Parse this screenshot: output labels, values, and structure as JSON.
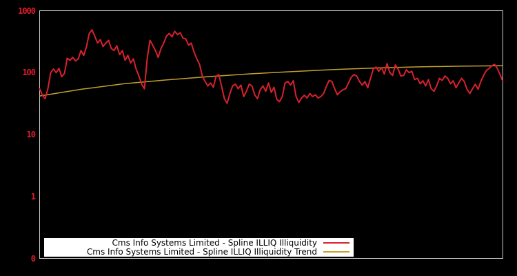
{
  "colors": {
    "background": "#000000",
    "plot_border": "#cccccc",
    "axis_label": "#e01b28",
    "series_red": "#da212e",
    "series_gold": "#c4a02f",
    "legend_bg": "#ffffff",
    "legend_text": "#000000"
  },
  "chart_data": {
    "type": "line",
    "title": "",
    "xlabel": "",
    "ylabel": "",
    "grid": false,
    "legend_position": "bottom-center",
    "y_scale": "log",
    "y_range": [
      0.1,
      1000
    ],
    "y_ticks": [
      {
        "label": "1000",
        "value": 1000
      },
      {
        "label": "100",
        "value": 100
      },
      {
        "label": "10",
        "value": 10
      },
      {
        "label": "1",
        "value": 1
      },
      {
        "label": "0",
        "value": 0.1
      }
    ],
    "x_tick_labels_visible": false,
    "series": [
      {
        "name": "Cms Info Systems Limited - Spline ILLIQ Illiquidity",
        "color": "#da212e",
        "values": [
          55,
          43,
          38,
          55,
          100,
          114,
          100,
          117,
          86,
          97,
          171,
          158,
          176,
          155,
          167,
          227,
          190,
          264,
          430,
          490,
          388,
          300,
          341,
          264,
          300,
          333,
          245,
          227,
          271,
          195,
          227,
          158,
          190,
          143,
          167,
          114,
          88,
          65,
          55,
          167,
          333,
          278,
          227,
          176,
          245,
          300,
          388,
          430,
          378,
          464,
          409,
          441,
          360,
          350,
          278,
          300,
          215,
          167,
          136,
          88,
          72,
          61,
          68,
          58,
          88,
          93,
          60,
          38,
          32,
          46,
          61,
          65,
          55,
          63,
          41,
          50,
          65,
          61,
          44,
          38,
          53,
          61,
          50,
          68,
          48,
          58,
          37,
          34,
          41,
          68,
          72,
          63,
          74,
          41,
          33,
          39,
          43,
          39,
          46,
          41,
          44,
          39,
          41,
          46,
          60,
          75,
          72,
          55,
          44,
          49,
          53,
          55,
          68,
          84,
          93,
          88,
          72,
          63,
          72,
          57,
          81,
          114,
          123,
          105,
          120,
          95,
          140,
          100,
          90,
          133,
          114,
          88,
          90,
          111,
          100,
          105,
          77,
          81,
          66,
          74,
          61,
          77,
          55,
          50,
          61,
          81,
          75,
          88,
          81,
          66,
          74,
          57,
          68,
          81,
          72,
          54,
          46,
          55,
          65,
          54,
          72,
          90,
          108,
          117,
          129,
          136,
          117,
          93,
          72
        ]
      },
      {
        "name": "Cms Info Systems Limited - Spline ILLIQ Illiquidity Trend",
        "color": "#c4a02f",
        "values": [
          42,
          54,
          66,
          76,
          86,
          95.5,
          104,
          112.5,
          119,
          124,
          127,
          129
        ]
      }
    ]
  },
  "legend": {
    "entries": [
      {
        "label": "Cms Info Systems Limited - Spline ILLIQ Illiquidity"
      },
      {
        "label": "Cms Info Systems Limited - Spline ILLIQ Illiquidity Trend"
      }
    ]
  }
}
